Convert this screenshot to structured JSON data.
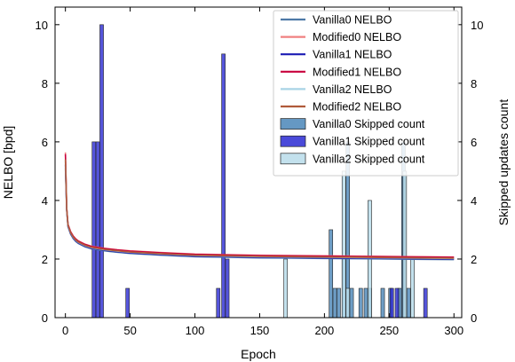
{
  "chart_data": {
    "type": "line",
    "xlabel": "Epoch",
    "ylabel": "NELBO [bpd]",
    "y2label": "Skipped updates count",
    "xlim": [
      -8,
      306
    ],
    "ylim": [
      0,
      10.6
    ],
    "y2lim": [
      0,
      10.6
    ],
    "xticks": [
      0,
      50,
      100,
      150,
      200,
      250,
      300
    ],
    "yticks": [
      0,
      2,
      4,
      6,
      8,
      10
    ],
    "y2ticks": [
      0,
      2,
      4,
      6,
      8,
      10
    ],
    "legend_position": "top-right",
    "curve": {
      "x": [
        0,
        1,
        2,
        4,
        6,
        8,
        10,
        15,
        20,
        30,
        40,
        50,
        75,
        100,
        125,
        150,
        175,
        200,
        225,
        250,
        275,
        300
      ],
      "y": [
        5.4,
        3.7,
        3.15,
        2.9,
        2.75,
        2.65,
        2.58,
        2.47,
        2.4,
        2.33,
        2.28,
        2.24,
        2.18,
        2.13,
        2.11,
        2.09,
        2.08,
        2.07,
        2.06,
        2.05,
        2.04,
        2.03
      ]
    },
    "series": [
      {
        "name": "Vanilla0 NELBO",
        "kind": "line",
        "color": "#4e79a7",
        "offset": -0.05
      },
      {
        "name": "Modified0 NELBO",
        "kind": "line",
        "color": "#f08080",
        "offset": 0.04
      },
      {
        "name": "Vanilla1 NELBO",
        "kind": "line",
        "color": "#1c1cb4",
        "offset": -0.03
      },
      {
        "name": "Modified1 NELBO",
        "kind": "line",
        "color": "#c8003c",
        "offset": 0.03
      },
      {
        "name": "Vanilla2 NELBO",
        "kind": "line",
        "color": "#a9d4e6",
        "offset": -0.01
      },
      {
        "name": "Modified2 NELBO",
        "kind": "line",
        "color": "#b05a3a",
        "offset": 0.0
      },
      {
        "name": "Vanilla0 Skipped count",
        "kind": "bar",
        "color": "#4a86b8",
        "x": [
          205,
          208,
          211,
          215,
          218,
          221,
          228,
          232,
          235,
          245,
          251,
          258,
          261,
          265
        ],
        "values": [
          3,
          1,
          1,
          2,
          6,
          1,
          1,
          1,
          1,
          1,
          1,
          1,
          6,
          1
        ]
      },
      {
        "name": "Vanilla1 Skipped count",
        "kind": "bar",
        "color": "#2a2ad2",
        "x": [
          22,
          25,
          28,
          48,
          118,
          122,
          125,
          252,
          256,
          278
        ],
        "values": [
          6,
          6,
          10,
          1,
          1,
          9,
          2,
          1,
          1,
          1
        ]
      },
      {
        "name": "Vanilla2 Skipped count",
        "kind": "bar",
        "color": "#b8dcea",
        "x": [
          170,
          215,
          218,
          235,
          262,
          268
        ],
        "values": [
          2,
          5,
          1,
          4,
          5,
          2
        ]
      }
    ]
  }
}
